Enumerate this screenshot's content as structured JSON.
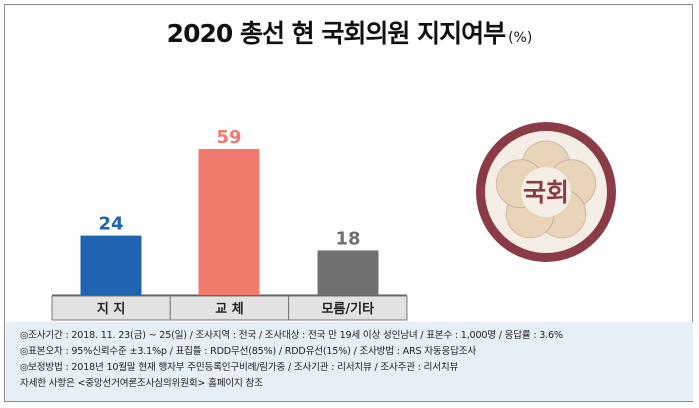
{
  "title": "2020 총선 현 국회의원 지지여부",
  "unit": "(%)",
  "chart_data": {
    "type": "bar",
    "title": "2020 총선 현 국회의원 지지여부",
    "unit": "(%)",
    "categories": [
      "지 지",
      "교 체",
      "모름/기타"
    ],
    "values": [
      24,
      59,
      18
    ],
    "colors": [
      "#1e64b0",
      "#f07a6c",
      "#707070"
    ],
    "ylim": [
      0,
      65
    ],
    "grid": false,
    "legend": "none"
  },
  "emblem_text": "국회",
  "emblem_colors": {
    "outer": "#8a3b45",
    "ring": "#f4eee7",
    "petals": "#e7d4b9",
    "text": "#8a3b45"
  },
  "notes": [
    "◎조사기간 : 2018. 11. 23(금) ~ 25(일) / 조사지역 : 전국 / 조사대상 : 전국 만 19세 이상 성인남녀 / 표본수 : 1,000명 / 응답률 : 3.6%",
    "◎표본오차 : 95%신뢰수준 ±3.1%p  / 표집틀 : RDD무선(85%) / RDD유선(15%) / 조사방법 : ARS 자동응답조사",
    "◎보정방법 : 2018년 10월말 현재 행자부 주민등록인구비례/림가중 / 조사기관 : 리서치뷰 / 조사주관 : 리서치뷰",
    "자세한 사항은 <중앙선거여론조사심의위원회> 홈페이지 참조"
  ]
}
